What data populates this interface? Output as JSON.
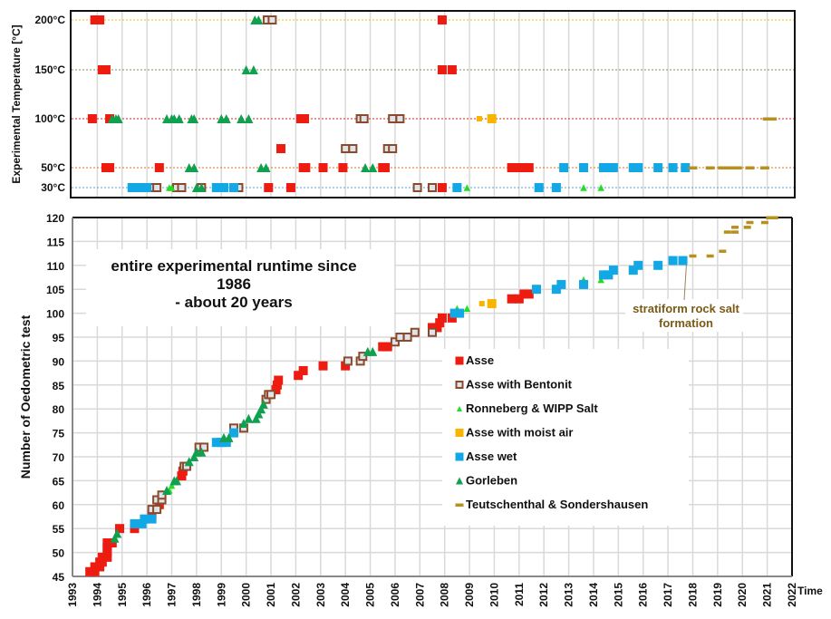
{
  "colors": {
    "Asse": "#ee1c10",
    "AsseBentonitEdge": "#8b4a2b",
    "AsseBentonitFill": "#dfe4ea",
    "Ronneberg": "#22dd22",
    "MoistAir": "#f7b500",
    "AsseWet": "#12a8e6",
    "Gorleben": "#0fa050",
    "Teutschenthal": "#b8901e"
  },
  "chart_data": [
    {
      "type": "scatter",
      "title": "",
      "ylabel": "Experimental Temperature [°C]",
      "xlabel": "",
      "xlim": [
        1993,
        2022
      ],
      "y_categories": [
        "200°C",
        "150°C",
        "100°C",
        "50°C",
        "30°C"
      ],
      "reference_lines": [
        {
          "level": "200°C",
          "color": "#f2c200"
        },
        {
          "level": "150°C",
          "color": "#7a8f50"
        },
        {
          "level": "100°C",
          "color": "#e02010"
        },
        {
          "level": "50°C",
          "color": "#e07020"
        },
        {
          "level": "30°C",
          "color": "#5a9fd8"
        }
      ],
      "grid": true,
      "series": [
        {
          "name": "Asse",
          "points": [
            [
              1993.9,
              200
            ],
            [
              1994.1,
              200
            ],
            [
              1994.2,
              150
            ],
            [
              1994.35,
              150
            ],
            [
              1993.8,
              100
            ],
            [
              1994.5,
              100
            ],
            [
              1994.35,
              50
            ],
            [
              1994.5,
              50
            ],
            [
              1996.5,
              50
            ],
            [
              1996.2,
              30
            ],
            [
              2000.9,
              30
            ],
            [
              2001.0,
              200
            ],
            [
              2001.4,
              70
            ],
            [
              2001.8,
              30
            ],
            [
              2002.2,
              100
            ],
            [
              2002.35,
              100
            ],
            [
              2002.3,
              50
            ],
            [
              2002.4,
              50
            ],
            [
              2003.1,
              50
            ],
            [
              2003.9,
              50
            ],
            [
              2005.5,
              50
            ],
            [
              2005.6,
              50
            ],
            [
              2007.9,
              30
            ],
            [
              2007.9,
              200
            ],
            [
              2007.9,
              150
            ],
            [
              2008.3,
              150
            ],
            [
              2010.7,
              50
            ],
            [
              2011.0,
              50
            ],
            [
              2011.2,
              50
            ],
            [
              2011.4,
              50
            ]
          ]
        },
        {
          "name": "Asse with Bentonit",
          "points": [
            [
              1996.2,
              30
            ],
            [
              1996.4,
              30
            ],
            [
              1997.2,
              30
            ],
            [
              1997.4,
              30
            ],
            [
              1998.2,
              30
            ],
            [
              1999.7,
              30
            ],
            [
              2000.85,
              200
            ],
            [
              2001.05,
              200
            ],
            [
              2004.0,
              70
            ],
            [
              2004.3,
              70
            ],
            [
              2004.6,
              100
            ],
            [
              2004.75,
              100
            ],
            [
              2005.7,
              70
            ],
            [
              2005.9,
              70
            ],
            [
              2005.9,
              100
            ],
            [
              2006.2,
              100
            ],
            [
              2006.9,
              30
            ],
            [
              2007.5,
              30
            ]
          ]
        },
        {
          "name": "Ronneberg & WIPP Salt",
          "points": [
            [
              1996.9,
              30
            ],
            [
              1997.0,
              30
            ],
            [
              2008.9,
              30
            ],
            [
              2013.6,
              30
            ],
            [
              2014.3,
              30
            ]
          ]
        },
        {
          "name": "Asse with moist air",
          "points": [
            [
              2009.4,
              100
            ],
            [
              2009.9,
              100
            ]
          ]
        },
        {
          "name": "Asse wet",
          "points": [
            [
              1995.4,
              30
            ],
            [
              1995.6,
              30
            ],
            [
              1995.8,
              30
            ],
            [
              1996.0,
              30
            ],
            [
              1998.8,
              30
            ],
            [
              1999.1,
              30
            ],
            [
              1999.5,
              30
            ],
            [
              2008.5,
              30
            ],
            [
              2011.8,
              30
            ],
            [
              2012.5,
              30
            ],
            [
              2012.8,
              50
            ],
            [
              2013.6,
              50
            ],
            [
              2014.4,
              50
            ],
            [
              2014.6,
              50
            ],
            [
              2014.8,
              50
            ],
            [
              2015.6,
              50
            ],
            [
              2015.8,
              50
            ],
            [
              2016.6,
              50
            ],
            [
              2017.2,
              50
            ],
            [
              2017.7,
              50
            ]
          ]
        },
        {
          "name": "Gorleben",
          "points": [
            [
              1994.6,
              100
            ],
            [
              1994.75,
              100
            ],
            [
              1994.85,
              100
            ],
            [
              1996.8,
              100
            ],
            [
              1997.0,
              100
            ],
            [
              1997.1,
              100
            ],
            [
              1997.3,
              100
            ],
            [
              1997.8,
              100
            ],
            [
              1997.9,
              100
            ],
            [
              1999.0,
              100
            ],
            [
              1999.2,
              100
            ],
            [
              1999.8,
              100
            ],
            [
              2000.1,
              100
            ],
            [
              1997.7,
              50
            ],
            [
              1997.9,
              50
            ],
            [
              1998.0,
              30
            ],
            [
              1998.2,
              30
            ],
            [
              2000.0,
              150
            ],
            [
              2000.3,
              150
            ],
            [
              2000.35,
              200
            ],
            [
              2000.5,
              200
            ],
            [
              2000.6,
              50
            ],
            [
              2000.8,
              50
            ],
            [
              2004.8,
              50
            ],
            [
              2005.1,
              50
            ]
          ]
        },
        {
          "name": "Teutschenthal & Sondershausen",
          "points": [
            [
              2018.0,
              50
            ],
            [
              2018.7,
              50
            ],
            [
              2019.2,
              50
            ],
            [
              2019.5,
              50
            ],
            [
              2019.8,
              50
            ],
            [
              2020.3,
              50
            ],
            [
              2020.9,
              50
            ],
            [
              2021.0,
              100
            ],
            [
              2021.2,
              100
            ]
          ]
        }
      ]
    },
    {
      "type": "scatter",
      "title": "",
      "ylabel": "Number of Oedometric test",
      "xlabel": "Time",
      "xlim": [
        1993,
        2022
      ],
      "ylim": [
        45,
        120
      ],
      "x_ticks": [
        "1993",
        "1994",
        "1995",
        "1996",
        "1997",
        "1998",
        "1999",
        "2000",
        "2001",
        "2002",
        "2003",
        "2004",
        "2005",
        "2006",
        "2007",
        "2008",
        "2009",
        "2010",
        "2011",
        "2012",
        "2013",
        "2014",
        "2015",
        "2016",
        "2017",
        "2018",
        "2019",
        "2020",
        "2021",
        "2022"
      ],
      "y_ticks": [
        45,
        50,
        55,
        60,
        65,
        70,
        75,
        80,
        85,
        90,
        95,
        100,
        105,
        110,
        115,
        120
      ],
      "grid": true,
      "legend_position": "center-right",
      "annotations": [
        {
          "text_lines": [
            "entire experimental runtime since",
            "1986",
            "-  about 20 years"
          ],
          "position": "upper-left"
        },
        {
          "text_lines": [
            "stratiform rock salt",
            "formation"
          ],
          "points_to": [
            2018.0,
            112
          ]
        }
      ],
      "series": [
        {
          "name": "Asse",
          "points": [
            [
              1993.7,
              46
            ],
            [
              1993.9,
              46
            ],
            [
              1993.9,
              47
            ],
            [
              1994.1,
              47
            ],
            [
              1994.1,
              48
            ],
            [
              1994.2,
              48
            ],
            [
              1994.2,
              49
            ],
            [
              1994.4,
              49
            ],
            [
              1994.4,
              50
            ],
            [
              1994.4,
              51
            ],
            [
              1994.4,
              52
            ],
            [
              1994.6,
              52
            ],
            [
              1994.9,
              55
            ],
            [
              1995.5,
              55
            ],
            [
              1996.2,
              58
            ],
            [
              1996.5,
              60
            ],
            [
              1997.4,
              66
            ],
            [
              1997.45,
              67
            ],
            [
              2001.2,
              84
            ],
            [
              2001.25,
              85
            ],
            [
              2001.3,
              86
            ],
            [
              2002.1,
              87
            ],
            [
              2002.3,
              88
            ],
            [
              2003.1,
              89
            ],
            [
              2004.0,
              89
            ],
            [
              2005.5,
              93
            ],
            [
              2005.7,
              93
            ],
            [
              2007.5,
              97
            ],
            [
              2007.7,
              97
            ],
            [
              2007.8,
              98
            ],
            [
              2007.9,
              99
            ],
            [
              2008.3,
              99
            ],
            [
              2010.7,
              103
            ],
            [
              2011.0,
              103
            ],
            [
              2011.2,
              104
            ],
            [
              2011.4,
              104
            ]
          ]
        },
        {
          "name": "Asse with Bentonit",
          "points": [
            [
              1996.2,
              59
            ],
            [
              1996.4,
              59
            ],
            [
              1996.4,
              61
            ],
            [
              1996.6,
              61
            ],
            [
              1996.6,
              62
            ],
            [
              1997.5,
              68
            ],
            [
              1997.6,
              68
            ],
            [
              1998.1,
              72
            ],
            [
              1998.3,
              72
            ],
            [
              1999.5,
              76
            ],
            [
              1999.9,
              76
            ],
            [
              2000.8,
              82
            ],
            [
              2000.9,
              83
            ],
            [
              2001.0,
              83
            ],
            [
              2004.1,
              90
            ],
            [
              2004.6,
              90
            ],
            [
              2004.7,
              91
            ],
            [
              2006.0,
              94
            ],
            [
              2006.2,
              95
            ],
            [
              2006.5,
              95
            ],
            [
              2006.8,
              96
            ],
            [
              2007.5,
              96
            ]
          ]
        },
        {
          "name": "Ronneberg & WIPP Salt",
          "points": [
            [
              1996.9,
              63
            ],
            [
              1997.0,
              64
            ],
            [
              2008.5,
              101
            ],
            [
              2008.9,
              101
            ],
            [
              2013.6,
              107
            ],
            [
              2014.3,
              107
            ]
          ]
        },
        {
          "name": "Asse with moist air",
          "points": [
            [
              2009.5,
              102
            ],
            [
              2009.9,
              102
            ]
          ]
        },
        {
          "name": "Asse wet",
          "points": [
            [
              1995.5,
              56
            ],
            [
              1995.8,
              56
            ],
            [
              1995.9,
              57
            ],
            [
              1996.2,
              57
            ],
            [
              1998.8,
              73
            ],
            [
              1999.0,
              73
            ],
            [
              1999.2,
              73
            ],
            [
              1999.5,
              75
            ],
            [
              2008.4,
              100
            ],
            [
              2008.6,
              100
            ],
            [
              2011.7,
              105
            ],
            [
              2012.5,
              105
            ],
            [
              2012.7,
              106
            ],
            [
              2013.6,
              106
            ],
            [
              2014.4,
              108
            ],
            [
              2014.6,
              108
            ],
            [
              2014.8,
              109
            ],
            [
              2015.6,
              109
            ],
            [
              2015.8,
              110
            ],
            [
              2016.6,
              110
            ],
            [
              2017.2,
              111
            ],
            [
              2017.6,
              111
            ]
          ]
        },
        {
          "name": "Gorleben",
          "points": [
            [
              1994.7,
              53
            ],
            [
              1994.8,
              54
            ],
            [
              1996.8,
              63
            ],
            [
              1997.1,
              65
            ],
            [
              1997.2,
              65
            ],
            [
              1997.7,
              69
            ],
            [
              1997.9,
              70
            ],
            [
              1998.0,
              71
            ],
            [
              1998.2,
              71
            ],
            [
              1999.1,
              74
            ],
            [
              1999.3,
              74
            ],
            [
              1999.9,
              77
            ],
            [
              2000.1,
              78
            ],
            [
              2000.4,
              78
            ],
            [
              2000.5,
              79
            ],
            [
              2000.6,
              80
            ],
            [
              2000.7,
              81
            ],
            [
              2004.9,
              92
            ],
            [
              2005.1,
              92
            ]
          ]
        },
        {
          "name": "Teutschenthal & Sondershausen",
          "points": [
            [
              2018.0,
              112
            ],
            [
              2018.7,
              112
            ],
            [
              2019.2,
              113
            ],
            [
              2019.4,
              117
            ],
            [
              2019.7,
              117
            ],
            [
              2019.7,
              118
            ],
            [
              2020.2,
              118
            ],
            [
              2020.3,
              119
            ],
            [
              2020.9,
              119
            ],
            [
              2021.1,
              120
            ],
            [
              2021.3,
              120
            ]
          ]
        }
      ]
    }
  ],
  "legend": {
    "items": [
      {
        "label": "Asse",
        "marker": "square"
      },
      {
        "label": "Asse with Bentonit",
        "marker": "open-square"
      },
      {
        "label": "Ronneberg & WIPP Salt",
        "marker": "triangle"
      },
      {
        "label": "Asse with moist air",
        "marker": "square"
      },
      {
        "label": "Asse wet",
        "marker": "square"
      },
      {
        "label": "Gorleben",
        "marker": "triangle"
      },
      {
        "label": "Teutschenthal & Sondershausen",
        "marker": "dash"
      }
    ]
  }
}
